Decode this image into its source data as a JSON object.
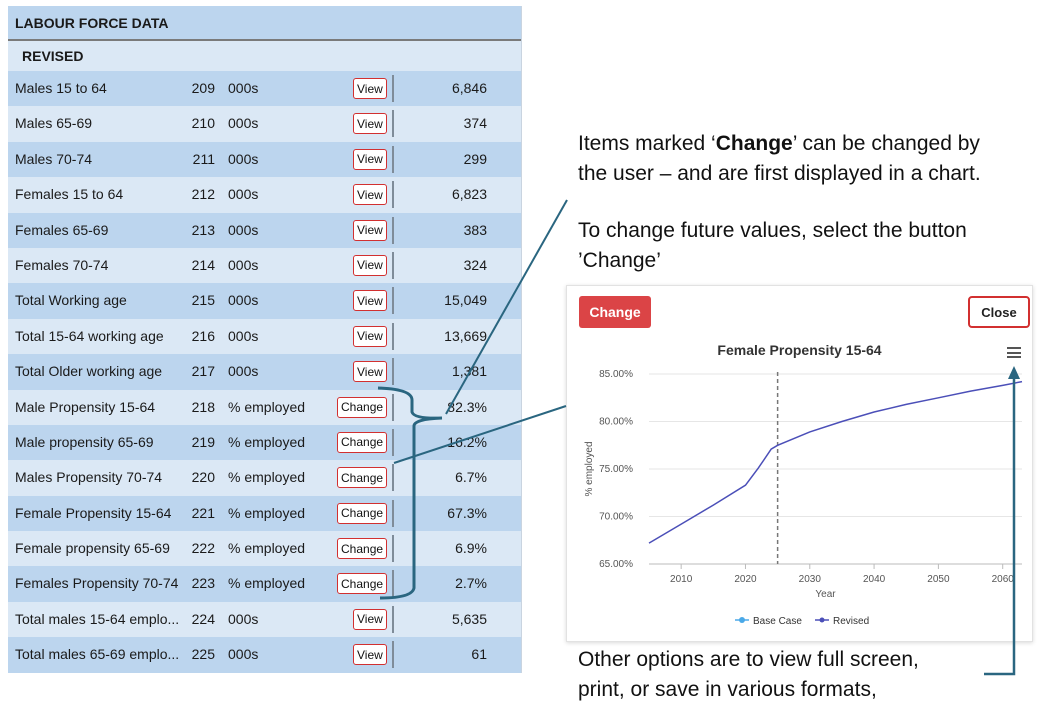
{
  "table": {
    "header": "LABOUR FORCE DATA",
    "section": "REVISED",
    "rows": [
      {
        "label": "Males 15 to 64",
        "num": "209",
        "unit": "000s",
        "button": "View",
        "value": "6,846"
      },
      {
        "label": "Males 65-69",
        "num": "210",
        "unit": "000s",
        "button": "View",
        "value": "374"
      },
      {
        "label": "Males 70-74",
        "num": "211",
        "unit": "000s",
        "button": "View",
        "value": "299"
      },
      {
        "label": "Females 15 to 64",
        "num": "212",
        "unit": "000s",
        "button": "View",
        "value": "6,823"
      },
      {
        "label": "Females 65-69",
        "num": "213",
        "unit": "000s",
        "button": "View",
        "value": "383"
      },
      {
        "label": "Females 70-74",
        "num": "214",
        "unit": "000s",
        "button": "View",
        "value": "324"
      },
      {
        "label": "Total Working age",
        "num": "215",
        "unit": "000s",
        "button": "View",
        "value": "15,049"
      },
      {
        "label": "Total 15-64 working age",
        "num": "216",
        "unit": "000s",
        "button": "View",
        "value": "13,669"
      },
      {
        "label": "Total Older working age",
        "num": "217",
        "unit": "000s",
        "button": "View",
        "value": "1,381"
      },
      {
        "label": "Male Propensity 15-64",
        "num": "218",
        "unit": "% employed",
        "button": "Change",
        "value": "82.3%"
      },
      {
        "label": "Male propensity 65-69",
        "num": "219",
        "unit": "% employed",
        "button": "Change",
        "value": "16.2%"
      },
      {
        "label": "Males Propensity 70-74",
        "num": "220",
        "unit": "% employed",
        "button": "Change",
        "value": "6.7%"
      },
      {
        "label": "Female Propensity 15-64",
        "num": "221",
        "unit": "% employed",
        "button": "Change",
        "value": "67.3%"
      },
      {
        "label": "Female propensity 65-69",
        "num": "222",
        "unit": "% employed",
        "button": "Change",
        "value": "6.9%"
      },
      {
        "label": "Females Propensity 70-74",
        "num": "223",
        "unit": "% employed",
        "button": "Change",
        "value": "2.7%"
      },
      {
        "label": "Total males 15-64 emplo...",
        "num": "224",
        "unit": "000s",
        "button": "View",
        "value": "5,635"
      },
      {
        "label": "Total males 65-69 emplo...",
        "num": "225",
        "unit": "000s",
        "button": "View",
        "value": "61"
      }
    ]
  },
  "annotations": {
    "note1_pre": "Items marked ‘",
    "note1_bold": "Change",
    "note1_post": "’ can be changed by",
    "note1_line2": "the user – and are first displayed in a chart.",
    "note2_line1": "To change future values, select the button",
    "note2_line2": "’Change’",
    "note3_line1": "Other options are to view full screen,",
    "note3_line2": "print, or save in various formats,"
  },
  "popup": {
    "change_label": "Change",
    "close_label": "Close",
    "menu_icon": "hamburger-menu-icon"
  },
  "colors": {
    "row_dark": "#bcd5ee",
    "row_light": "#dbe8f5",
    "button_border": "#d23030",
    "change_button": "#db4446",
    "annotation_line": "#2a6680",
    "base_case": "#4aa9e8",
    "revised": "#4b4fb8"
  },
  "chart_data": {
    "type": "line",
    "title": "Female Propensity 15-64",
    "xlabel": "Year",
    "ylabel": "% employed",
    "xlim": [
      2005,
      2063
    ],
    "ylim": [
      65,
      85
    ],
    "x_ticks": [
      "2010",
      "2020",
      "2030",
      "2040",
      "2050",
      "2060"
    ],
    "y_ticks": [
      "65.00%",
      "70.00%",
      "75.00%",
      "80.00%",
      "85.00%"
    ],
    "divider_year": 2025,
    "grid": true,
    "legend_position": "bottom",
    "series": [
      {
        "name": "Base Case",
        "x": [],
        "y": []
      },
      {
        "name": "Revised",
        "x": [
          2005,
          2010,
          2015,
          2020,
          2022,
          2024,
          2025,
          2030,
          2035,
          2040,
          2045,
          2050,
          2055,
          2060,
          2063
        ],
        "y": [
          67.2,
          69.2,
          71.2,
          73.3,
          75.1,
          77.1,
          77.5,
          78.9,
          80.0,
          81.0,
          81.8,
          82.5,
          83.2,
          83.8,
          84.2
        ]
      }
    ]
  }
}
